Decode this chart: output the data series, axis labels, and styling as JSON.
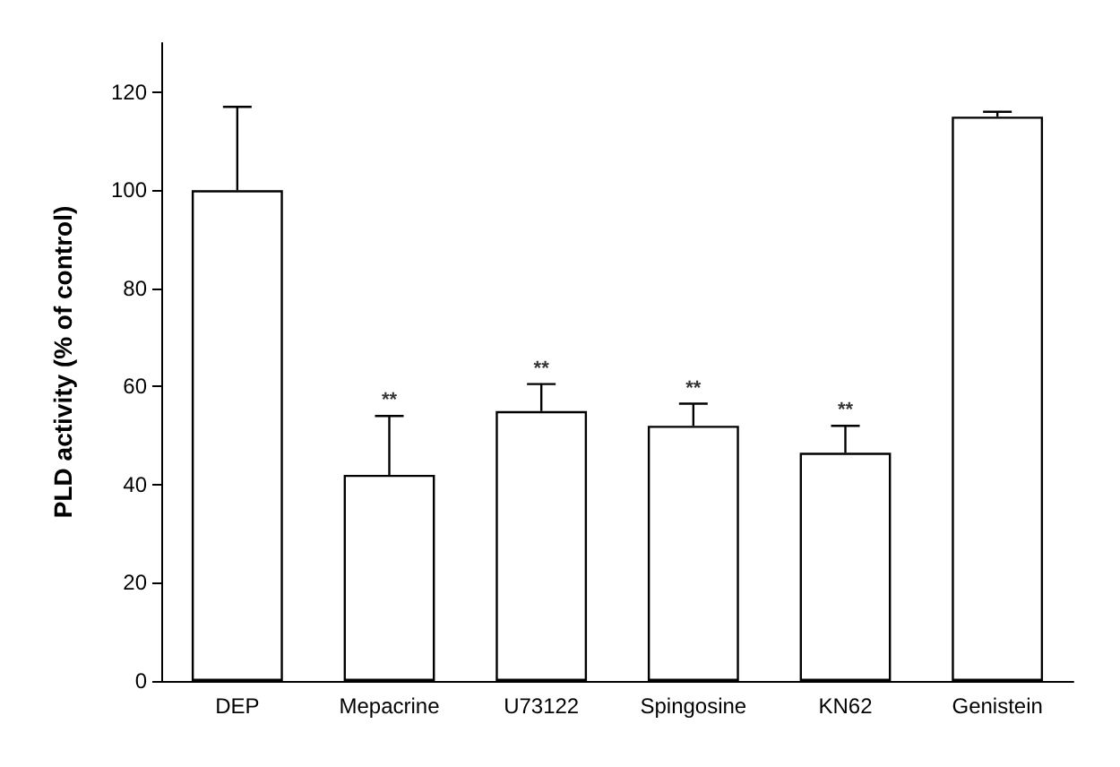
{
  "chart_data": {
    "type": "bar",
    "ylabel": "PLD activity (% of control)",
    "categories": [
      "DEP",
      "Mepacrine",
      "U73122",
      "Spingosine",
      "KN62",
      "Genistein"
    ],
    "values": [
      100,
      42,
      55,
      52,
      46.5,
      115
    ],
    "errors": [
      [
        100,
        117
      ],
      [
        42,
        54
      ],
      [
        55,
        60.5
      ],
      [
        52,
        56.5
      ],
      [
        46.5,
        52
      ],
      [
        115,
        116
      ]
    ],
    "color": "#ffffff",
    "ylim": [
      0,
      130
    ],
    "yticks": [
      0,
      20,
      40,
      60,
      80,
      100,
      120
    ],
    "grid": false,
    "annotations": [
      {
        "text": "**",
        "x": "Mepacrine",
        "y": 54
      },
      {
        "text": "**",
        "x": "U73122",
        "y": 60.5
      },
      {
        "text": "**",
        "x": "Spingosine",
        "y": 56.5
      },
      {
        "text": "**",
        "x": "KN62",
        "y": 52
      }
    ]
  }
}
